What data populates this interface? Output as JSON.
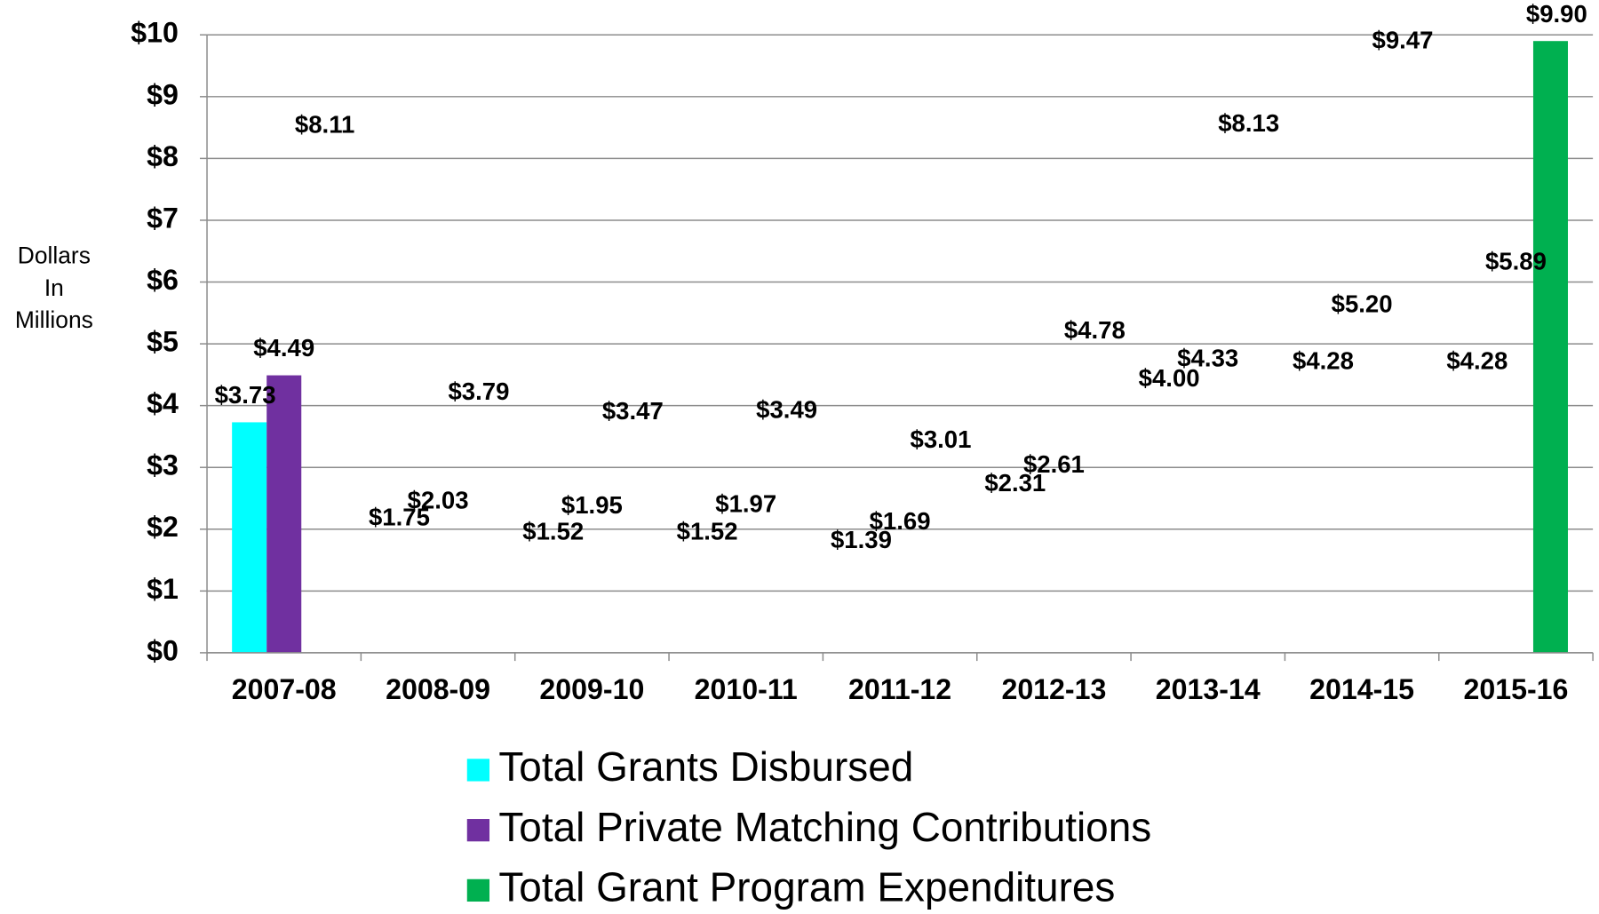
{
  "chart_data": {
    "type": "bar",
    "y_label": [
      "Dollars",
      "In",
      "Millions"
    ],
    "categories": [
      "2007-08",
      "2008-09",
      "2009-10",
      "2010-11",
      "2011-12",
      "2012-13",
      "2013-14",
      "2014-15",
      "2015-16"
    ],
    "series": [
      {
        "name": "Total Grants Disbursed",
        "color": "#00ffff",
        "colors": [
          "#00ffff",
          "none",
          "none",
          "none",
          "none",
          "none",
          "none",
          "none",
          "none"
        ],
        "values": [
          3.73,
          1.75,
          1.52,
          1.52,
          1.39,
          2.31,
          4.0,
          4.28,
          4.28
        ],
        "value_labels": [
          "$3.73",
          "$1.75",
          "$1.52",
          "$1.52",
          "$1.39",
          "$2.31",
          "$4.00",
          "$4.28",
          "$4.28"
        ]
      },
      {
        "name": "Total Private Matching Contributions",
        "color": "#7030a0",
        "colors": [
          "#7030a0",
          "none",
          "none",
          "none",
          "none",
          "none",
          "none",
          "none",
          "none"
        ],
        "values": [
          4.49,
          2.03,
          1.95,
          1.97,
          1.69,
          2.61,
          4.33,
          5.2,
          5.89
        ],
        "value_labels": [
          "$4.49",
          "$2.03",
          "$1.95",
          "$1.97",
          "$1.69",
          "$2.61",
          "$4.33",
          "$5.20",
          "$5.89"
        ]
      },
      {
        "name": "Total Grant Program Expenditures",
        "color": "#00b050",
        "colors": [
          "none",
          "none",
          "none",
          "none",
          "none",
          "none",
          "none",
          "none",
          "#00b050"
        ],
        "values": [
          8.11,
          3.79,
          3.47,
          3.49,
          3.01,
          4.78,
          8.13,
          9.47,
          9.9
        ],
        "value_labels": [
          "$8.11",
          "$3.79",
          "$3.47",
          "$3.49",
          "$3.01",
          "$4.78",
          "$8.13",
          "$9.47",
          "$9.90"
        ]
      }
    ],
    "ylim": [
      0,
      10
    ],
    "yticks": [
      {
        "value": 0,
        "label": "$0"
      },
      {
        "value": 1,
        "label": "$1"
      },
      {
        "value": 2,
        "label": "$2"
      },
      {
        "value": 3,
        "label": "$3"
      },
      {
        "value": 4,
        "label": "$4"
      },
      {
        "value": 5,
        "label": "$5"
      },
      {
        "value": 6,
        "label": "$6"
      },
      {
        "value": 7,
        "label": "$7"
      },
      {
        "value": 8,
        "label": "$8"
      },
      {
        "value": 9,
        "label": "$9"
      },
      {
        "value": 10,
        "label": "$10"
      }
    ],
    "grid": true,
    "legend": "bottom"
  }
}
